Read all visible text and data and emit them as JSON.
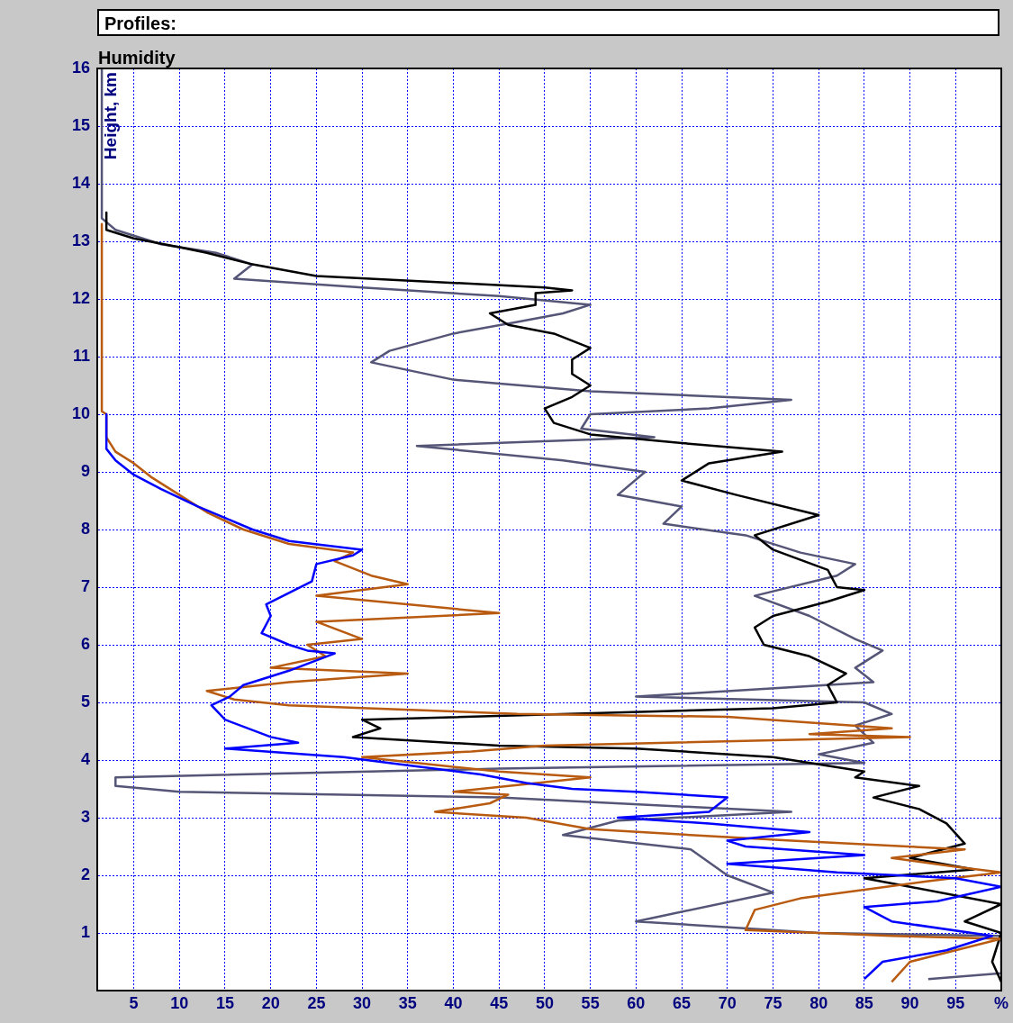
{
  "chart_data": {
    "type": "line",
    "title": "Humidity",
    "ylabel": "Height, km",
    "annotations": [
      "Profiles:"
    ],
    "xlim": [
      1,
      100
    ],
    "ylim": [
      0,
      16
    ],
    "xticks": [
      5,
      10,
      15,
      20,
      25,
      30,
      35,
      40,
      45,
      50,
      55,
      60,
      65,
      70,
      75,
      80,
      85,
      90,
      95,
      {
        "value": 100,
        "label": "%"
      }
    ],
    "yticks": [
      1,
      2,
      3,
      4,
      5,
      6,
      7,
      8,
      9,
      10,
      11,
      12,
      13,
      14,
      15,
      16
    ],
    "grid": true,
    "legend": false,
    "marker": "none",
    "line_style": "solid",
    "series": [
      {
        "color": "#0000ff",
        "x": [
          2,
          2,
          3,
          5,
          8,
          12,
          15,
          18,
          22,
          30,
          29,
          25,
          24.5,
          22,
          19.5,
          20,
          19,
          22,
          24,
          27,
          22,
          17,
          15.5,
          13.5,
          15,
          20,
          23,
          15,
          28,
          33,
          43,
          48,
          53,
          60,
          70,
          68,
          58,
          68,
          79,
          70,
          72,
          85,
          70,
          78,
          82,
          95,
          100,
          93,
          85,
          88,
          99,
          94,
          87,
          85
        ],
        "values": [
          10,
          9.4,
          9.2,
          8.95,
          8.7,
          8.4,
          8.2,
          8.0,
          7.8,
          7.65,
          7.55,
          7.4,
          7.1,
          6.9,
          6.7,
          6.5,
          6.2,
          6.0,
          5.9,
          5.85,
          5.55,
          5.3,
          5.1,
          4.95,
          4.7,
          4.4,
          4.3,
          4.2,
          4.05,
          3.95,
          3.75,
          3.6,
          3.5,
          3.45,
          3.35,
          3.1,
          3.0,
          2.9,
          2.75,
          2.6,
          2.5,
          2.35,
          2.2,
          2.1,
          2.05,
          1.95,
          1.8,
          1.55,
          1.45,
          1.2,
          0.95,
          0.7,
          0.5,
          0.2
        ]
      },
      {
        "color": "#b85a10",
        "x": [
          1.5,
          1.5,
          2,
          2,
          3,
          5,
          7,
          10,
          13,
          17,
          22,
          29,
          27,
          31,
          35,
          25,
          45,
          25,
          30,
          24,
          26,
          20,
          35,
          22,
          13,
          16,
          22,
          47,
          70,
          88,
          79,
          90,
          50,
          42,
          30,
          45,
          55,
          40,
          46,
          44,
          38,
          48,
          55,
          77,
          96,
          88,
          95,
          100,
          92,
          78,
          73,
          72,
          88,
          100,
          90,
          88
        ],
        "values": [
          13.3,
          10.05,
          10,
          9.6,
          9.35,
          9.15,
          8.9,
          8.6,
          8.3,
          8.0,
          7.75,
          7.6,
          7.45,
          7.2,
          7.05,
          6.85,
          6.55,
          6.4,
          6.1,
          6.0,
          5.8,
          5.6,
          5.5,
          5.35,
          5.2,
          5.05,
          4.95,
          4.8,
          4.75,
          4.55,
          4.45,
          4.4,
          4.25,
          4.15,
          4.05,
          3.8,
          3.7,
          3.45,
          3.4,
          3.25,
          3.1,
          3.0,
          2.8,
          2.6,
          2.45,
          2.3,
          2.15,
          2.05,
          1.9,
          1.6,
          1.4,
          1.05,
          0.95,
          0.9,
          0.5,
          0.15
        ]
      },
      {
        "color": "#000000",
        "x": [
          2,
          2,
          5,
          10,
          13,
          18,
          25,
          50,
          53,
          49,
          49,
          44,
          46,
          51,
          55,
          53,
          53,
          55,
          53,
          50,
          51,
          55,
          65,
          76,
          68,
          65,
          71,
          80,
          73,
          75,
          81,
          82,
          85,
          81,
          75,
          73,
          74,
          79,
          83,
          81,
          82,
          75,
          30,
          32,
          29,
          45,
          60,
          75,
          85,
          84,
          91,
          86,
          91,
          94,
          96,
          90,
          97,
          85,
          90,
          100,
          96,
          100,
          99,
          100
        ],
        "values": [
          13.5,
          13.2,
          13.05,
          12.9,
          12.8,
          12.6,
          12.4,
          12.2,
          12.15,
          12.1,
          11.9,
          11.75,
          11.55,
          11.4,
          11.15,
          10.95,
          10.7,
          10.5,
          10.3,
          10.1,
          9.85,
          9.65,
          9.5,
          9.35,
          9.15,
          8.85,
          8.6,
          8.25,
          7.9,
          7.65,
          7.3,
          7.0,
          6.95,
          6.75,
          6.5,
          6.3,
          6.0,
          5.8,
          5.5,
          5.3,
          5.0,
          4.9,
          4.7,
          4.55,
          4.4,
          4.25,
          4.2,
          4.05,
          3.8,
          3.7,
          3.55,
          3.35,
          3.15,
          2.9,
          2.55,
          2.3,
          2.1,
          1.95,
          1.8,
          1.5,
          1.2,
          1.0,
          0.5,
          0.15
        ]
      },
      {
        "color": "#555577",
        "x": [
          1.5,
          1.5,
          3,
          8,
          14,
          18,
          16,
          30,
          45,
          55,
          52,
          47,
          40,
          33,
          31,
          40,
          55,
          77,
          68,
          55,
          54,
          62,
          36,
          52,
          61,
          58,
          65,
          63,
          72,
          78,
          84,
          82,
          73,
          79,
          84,
          87,
          84,
          86,
          60,
          85,
          88,
          84,
          86,
          80,
          85,
          45,
          3,
          3,
          10,
          45,
          77,
          58,
          52,
          66,
          70,
          75,
          60,
          80,
          100,
          100,
          92
        ],
        "values": [
          16,
          13.4,
          13.2,
          12.95,
          12.8,
          12.6,
          12.35,
          12.2,
          12.05,
          11.9,
          11.75,
          11.6,
          11.4,
          11.1,
          10.9,
          10.6,
          10.4,
          10.25,
          10.1,
          10.0,
          9.75,
          9.6,
          9.45,
          9.2,
          9.0,
          8.6,
          8.4,
          8.1,
          7.9,
          7.6,
          7.4,
          7.2,
          6.85,
          6.5,
          6.1,
          5.9,
          5.6,
          5.35,
          5.1,
          5.0,
          4.8,
          4.6,
          4.3,
          4.1,
          3.95,
          3.85,
          3.7,
          3.55,
          3.45,
          3.35,
          3.1,
          2.95,
          2.7,
          2.45,
          2.0,
          1.7,
          1.2,
          1.0,
          0.95,
          0.3,
          0.2
        ]
      }
    ]
  }
}
